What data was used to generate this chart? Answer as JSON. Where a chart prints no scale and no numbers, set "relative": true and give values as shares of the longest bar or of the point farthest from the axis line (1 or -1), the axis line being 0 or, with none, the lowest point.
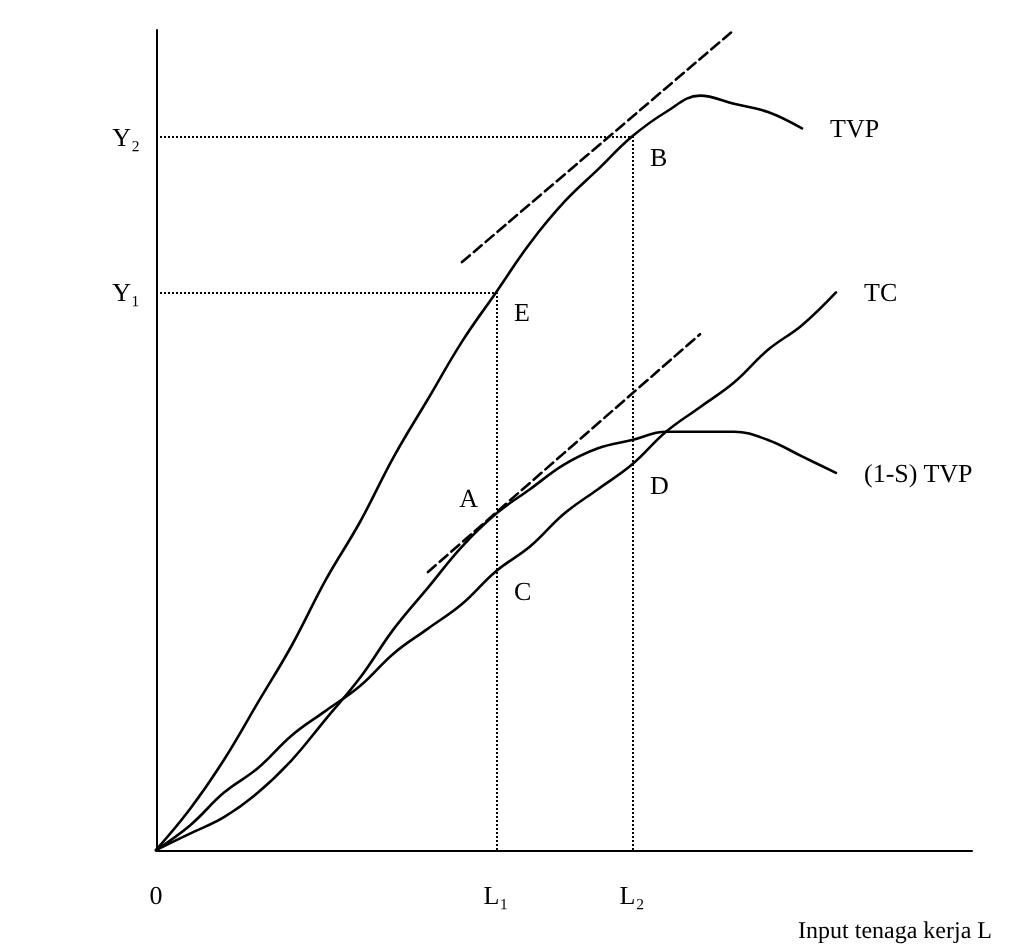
{
  "chart_data": {
    "type": "line",
    "relative": true,
    "xlabel": "Input tenaga kerja L",
    "categories": [
      "0",
      null,
      null,
      null,
      null,
      null,
      null,
      null,
      null,
      null,
      "L₁",
      null,
      null,
      null,
      "L₂",
      null,
      null,
      null,
      null,
      null,
      null,
      null,
      null,
      null,
      null
    ],
    "series": [
      {
        "name": "TVP",
        "color": "#000000",
        "values": [
          0,
          0.05,
          0.11,
          0.18,
          0.25,
          0.33,
          0.4,
          0.48,
          0.55,
          0.62,
          0.68,
          0.74,
          0.79,
          0.83,
          0.87,
          0.9,
          0.92,
          0.91,
          0.9,
          0.88,
          null,
          null,
          null,
          null,
          null
        ]
      },
      {
        "name": "(1-S) TVP",
        "color": "#000000",
        "values": [
          0,
          0.02,
          0.04,
          0.07,
          0.11,
          0.16,
          0.21,
          0.27,
          0.32,
          0.37,
          0.41,
          0.44,
          0.47,
          0.49,
          0.5,
          0.51,
          0.51,
          0.51,
          0.5,
          0.48,
          0.46,
          null,
          null,
          null,
          null
        ]
      },
      {
        "name": "TC",
        "color": "#000000",
        "values": [
          0,
          0.03,
          0.07,
          0.1,
          0.14,
          0.17,
          0.2,
          0.24,
          0.27,
          0.3,
          0.34,
          0.37,
          0.41,
          0.44,
          0.47,
          0.51,
          0.54,
          0.57,
          0.61,
          0.64,
          0.68,
          null,
          null,
          null,
          null
        ]
      },
      {
        "color": "#000000",
        "line_style": "dashed",
        "values": [
          null,
          null,
          null,
          null,
          null,
          null,
          null,
          null,
          null,
          0.717,
          null,
          null,
          null,
          null,
          null,
          null,
          null,
          1,
          null,
          null,
          null,
          null,
          null,
          null,
          null
        ]
      },
      {
        "color": "#000000",
        "line_style": "dashed",
        "values": [
          null,
          null,
          null,
          null,
          null,
          null,
          null,
          null,
          0.339,
          null,
          null,
          null,
          null,
          null,
          null,
          null,
          0.629,
          null,
          null,
          null,
          null,
          null,
          null,
          null,
          null
        ]
      }
    ],
    "annotations": [
      {
        "text": "E",
        "x": "L₁",
        "y": 0.68
      },
      {
        "text": "B",
        "x": "L₂",
        "y": 0.87
      },
      {
        "text": "A",
        "x": "L₁",
        "y": 0.41
      },
      {
        "text": "C",
        "x": "L₁",
        "y": 0.34
      },
      {
        "text": "D",
        "x": "L₂",
        "y": 0.47
      }
    ],
    "ref_lines": [
      {
        "axis": "y",
        "value": 0.68,
        "label": "Y₁",
        "line_style": "dotted"
      },
      {
        "axis": "y",
        "value": 0.87,
        "label": "Y₂",
        "line_style": "dotted"
      },
      {
        "axis": "x",
        "value": "L₁",
        "line_style": "dotted"
      },
      {
        "axis": "x",
        "value": "L₂",
        "line_style": "dotted"
      }
    ],
    "legend": false,
    "grid": false,
    "marker": "none",
    "line_style": "solid"
  }
}
